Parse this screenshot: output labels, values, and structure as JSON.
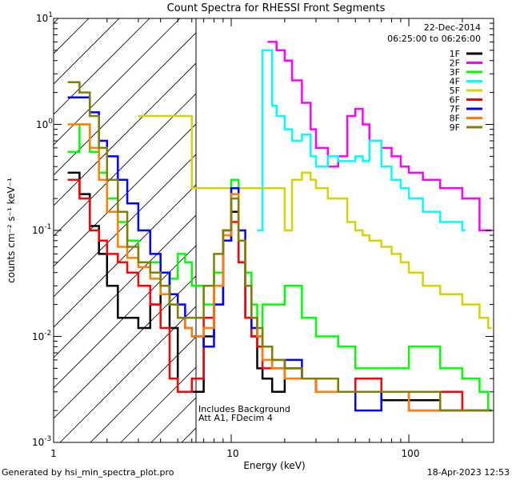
{
  "chart_data": {
    "type": "line",
    "title": "Count Spectra for RHESSI Front Segments",
    "date": "22-Dec-2014",
    "time_range": "06:25:00 to 06:26:00",
    "xlabel": "Energy (keV)",
    "ylabel": "counts cm⁻² s⁻¹ keV⁻¹",
    "xscale": "log",
    "yscale": "log",
    "xlim": [
      1,
      300
    ],
    "ylim": [
      0.001,
      10
    ],
    "x_tick_labels": [
      "1",
      "10",
      "100"
    ],
    "x_ticks": [
      1,
      10,
      100
    ],
    "y_ticks": [
      0.001,
      0.01,
      0.1,
      1,
      10
    ],
    "y_tick_base": "10",
    "y_tick_exponents": [
      "-3",
      "-2",
      "-1",
      "0",
      "1"
    ],
    "hatched_region_below_keV": 6,
    "annotations": [
      "Includes Background",
      "Att A1, FDecim 4"
    ],
    "legend": [
      "1F",
      "2F",
      "3F",
      "4F",
      "5F",
      "6F",
      "7F",
      "8F",
      "9F"
    ],
    "series": [
      {
        "name": "1F",
        "color": "#000000",
        "x": [
          1.2,
          1.4,
          1.6,
          1.8,
          2.0,
          2.3,
          2.6,
          3.0,
          3.5,
          4.0,
          4.5,
          5.0,
          5.5,
          6.0,
          7,
          8,
          9,
          10,
          11,
          12,
          13,
          14,
          15,
          17,
          20,
          25,
          30,
          40,
          50,
          70,
          100,
          150,
          200,
          250,
          280
        ],
        "y": [
          0.35,
          0.22,
          0.11,
          0.06,
          0.03,
          0.015,
          0.015,
          0.012,
          0.02,
          0.04,
          0.012,
          0.003,
          0.003,
          0.003,
          0.01,
          0.02,
          0.08,
          0.15,
          0.05,
          0.015,
          0.01,
          0.005,
          0.004,
          0.003,
          0.005,
          0.004,
          0.004,
          0.003,
          0.003,
          0.0025,
          0.0025,
          0.002,
          0.002,
          0.002,
          0.002
        ]
      },
      {
        "name": "2F",
        "color": "#ff00ff",
        "x": [
          16,
          17,
          18,
          20,
          22,
          25,
          28,
          30,
          35,
          40,
          45,
          50,
          55,
          60,
          70,
          80,
          90,
          100,
          120,
          150,
          200,
          250,
          280
        ],
        "y": [
          6,
          6,
          5,
          4,
          2.6,
          1.6,
          0.9,
          0.6,
          0.4,
          0.5,
          1.2,
          1.4,
          1.0,
          0.7,
          0.6,
          0.5,
          0.4,
          0.35,
          0.3,
          0.25,
          0.2,
          0.1,
          0.1
        ]
      },
      {
        "name": "3F",
        "color": "#00ff00",
        "x": [
          1.2,
          1.4,
          1.6,
          1.8,
          2.0,
          2.3,
          2.6,
          3.0,
          3.5,
          4.0,
          4.5,
          5.0,
          5.5,
          6.0,
          7,
          8,
          9,
          10,
          11,
          12,
          13,
          14,
          15,
          17,
          20,
          25,
          30,
          40,
          50,
          70,
          100,
          150,
          200,
          250,
          280
        ],
        "y": [
          0.55,
          1.0,
          0.55,
          0.35,
          0.2,
          0.12,
          0.08,
          0.05,
          0.05,
          0.04,
          0.035,
          0.06,
          0.05,
          0.03,
          0.02,
          0.04,
          0.1,
          0.3,
          0.08,
          0.04,
          0.02,
          0.01,
          0.02,
          0.02,
          0.03,
          0.015,
          0.01,
          0.008,
          0.005,
          0.005,
          0.008,
          0.005,
          0.004,
          0.003,
          0.002
        ]
      },
      {
        "name": "4F",
        "color": "#00ffff",
        "x": [
          14,
          15,
          16,
          17,
          18,
          20,
          22,
          25,
          28,
          30,
          35,
          40,
          50,
          55,
          60,
          70,
          80,
          90,
          100,
          120,
          150,
          200
        ],
        "y": [
          0.1,
          5,
          5,
          1.5,
          1.2,
          0.9,
          0.7,
          0.8,
          0.5,
          0.4,
          0.5,
          0.45,
          0.5,
          0.45,
          0.7,
          0.4,
          0.3,
          0.25,
          0.2,
          0.15,
          0.12,
          0.1
        ]
      },
      {
        "name": "5F",
        "color": "#d4d400",
        "x": [
          3.0,
          3.2,
          6.0,
          6.3,
          20,
          22,
          25,
          28,
          30,
          35,
          40,
          45,
          50,
          55,
          60,
          70,
          80,
          90,
          100,
          120,
          150,
          200,
          250,
          280
        ],
        "y": [
          1.2,
          1.2,
          0.25,
          0.25,
          0.1,
          0.3,
          0.35,
          0.3,
          0.25,
          0.2,
          0.2,
          0.12,
          0.1,
          0.09,
          0.08,
          0.07,
          0.06,
          0.05,
          0.04,
          0.03,
          0.025,
          0.02,
          0.015,
          0.012
        ]
      },
      {
        "name": "6F",
        "color": "#ff0000",
        "x": [
          1.2,
          1.4,
          1.6,
          1.8,
          2.0,
          2.3,
          2.6,
          3.0,
          3.5,
          4.0,
          4.5,
          5.0,
          5.5,
          6.0,
          7,
          8,
          9,
          10,
          11,
          12,
          13,
          14,
          15,
          17,
          20,
          25,
          30,
          40,
          50,
          70,
          100,
          150,
          200,
          250,
          280
        ],
        "y": [
          0.3,
          0.2,
          0.1,
          0.08,
          0.06,
          0.05,
          0.04,
          0.03,
          0.02,
          0.012,
          0.004,
          0.003,
          0.003,
          0.004,
          0.015,
          0.03,
          0.1,
          0.12,
          0.05,
          0.015,
          0.01,
          0.008,
          0.005,
          0.006,
          0.005,
          0.004,
          0.003,
          0.003,
          0.004,
          0.003,
          0.003,
          0.003,
          0.002,
          0.002,
          0.002
        ]
      },
      {
        "name": "7F",
        "color": "#0000ff",
        "x": [
          1.2,
          1.4,
          1.6,
          1.8,
          2.0,
          2.3,
          2.6,
          3.0,
          3.5,
          4.0,
          4.5,
          5.0,
          5.5,
          6.0,
          7,
          8,
          9,
          10,
          11,
          12,
          13,
          14,
          15,
          17,
          20,
          25,
          30,
          40,
          50,
          70,
          100,
          150,
          200,
          250,
          280
        ],
        "y": [
          1.8,
          1.8,
          1.3,
          0.7,
          0.5,
          0.3,
          0.18,
          0.1,
          0.06,
          0.04,
          0.025,
          0.02,
          0.012,
          0.01,
          0.008,
          0.02,
          0.08,
          0.25,
          0.1,
          0.03,
          0.012,
          0.01,
          0.008,
          0.005,
          0.006,
          0.004,
          0.003,
          0.003,
          0.002,
          0.003,
          0.002,
          0.002,
          0.002,
          0.002,
          0.002
        ]
      },
      {
        "name": "8F",
        "color": "#ff8000",
        "x": [
          1.2,
          1.4,
          1.6,
          1.8,
          2.0,
          2.3,
          2.6,
          3.0,
          3.5,
          4.0,
          4.5,
          5.0,
          5.5,
          6.0,
          7,
          8,
          9,
          10,
          11,
          12,
          13,
          14,
          15,
          17,
          20,
          25,
          30,
          40,
          50,
          70,
          100,
          150,
          200,
          250,
          280
        ],
        "y": [
          1.0,
          1.0,
          0.6,
          0.3,
          0.15,
          0.07,
          0.055,
          0.045,
          0.035,
          0.025,
          0.02,
          0.015,
          0.012,
          0.01,
          0.012,
          0.03,
          0.09,
          0.22,
          0.08,
          0.03,
          0.015,
          0.01,
          0.006,
          0.005,
          0.004,
          0.004,
          0.003,
          0.003,
          0.003,
          0.003,
          0.002,
          0.002,
          0.002,
          0.002,
          0.002
        ]
      },
      {
        "name": "9F",
        "color": "#808000",
        "x": [
          1.2,
          1.4,
          1.6,
          1.8,
          2.0,
          2.3,
          2.6,
          3.0,
          3.5,
          4.0,
          4.5,
          5.0,
          5.5,
          6.0,
          7,
          8,
          9,
          10,
          11,
          12,
          13,
          14,
          15,
          17,
          20,
          25,
          30,
          40,
          50,
          70,
          100,
          150,
          200,
          250,
          280
        ],
        "y": [
          2.5,
          2.0,
          1.2,
          0.6,
          0.3,
          0.15,
          0.07,
          0.05,
          0.04,
          0.03,
          0.02,
          0.015,
          0.015,
          0.015,
          0.03,
          0.06,
          0.1,
          0.2,
          0.08,
          0.03,
          0.015,
          0.012,
          0.008,
          0.006,
          0.005,
          0.004,
          0.004,
          0.003,
          0.003,
          0.003,
          0.003,
          0.002,
          0.002,
          0.002,
          0.002
        ]
      }
    ]
  },
  "footer": {
    "generated_by": "Generated by hsi_min_spectra_plot.pro",
    "timestamp": "18-Apr-2023 12:53"
  }
}
